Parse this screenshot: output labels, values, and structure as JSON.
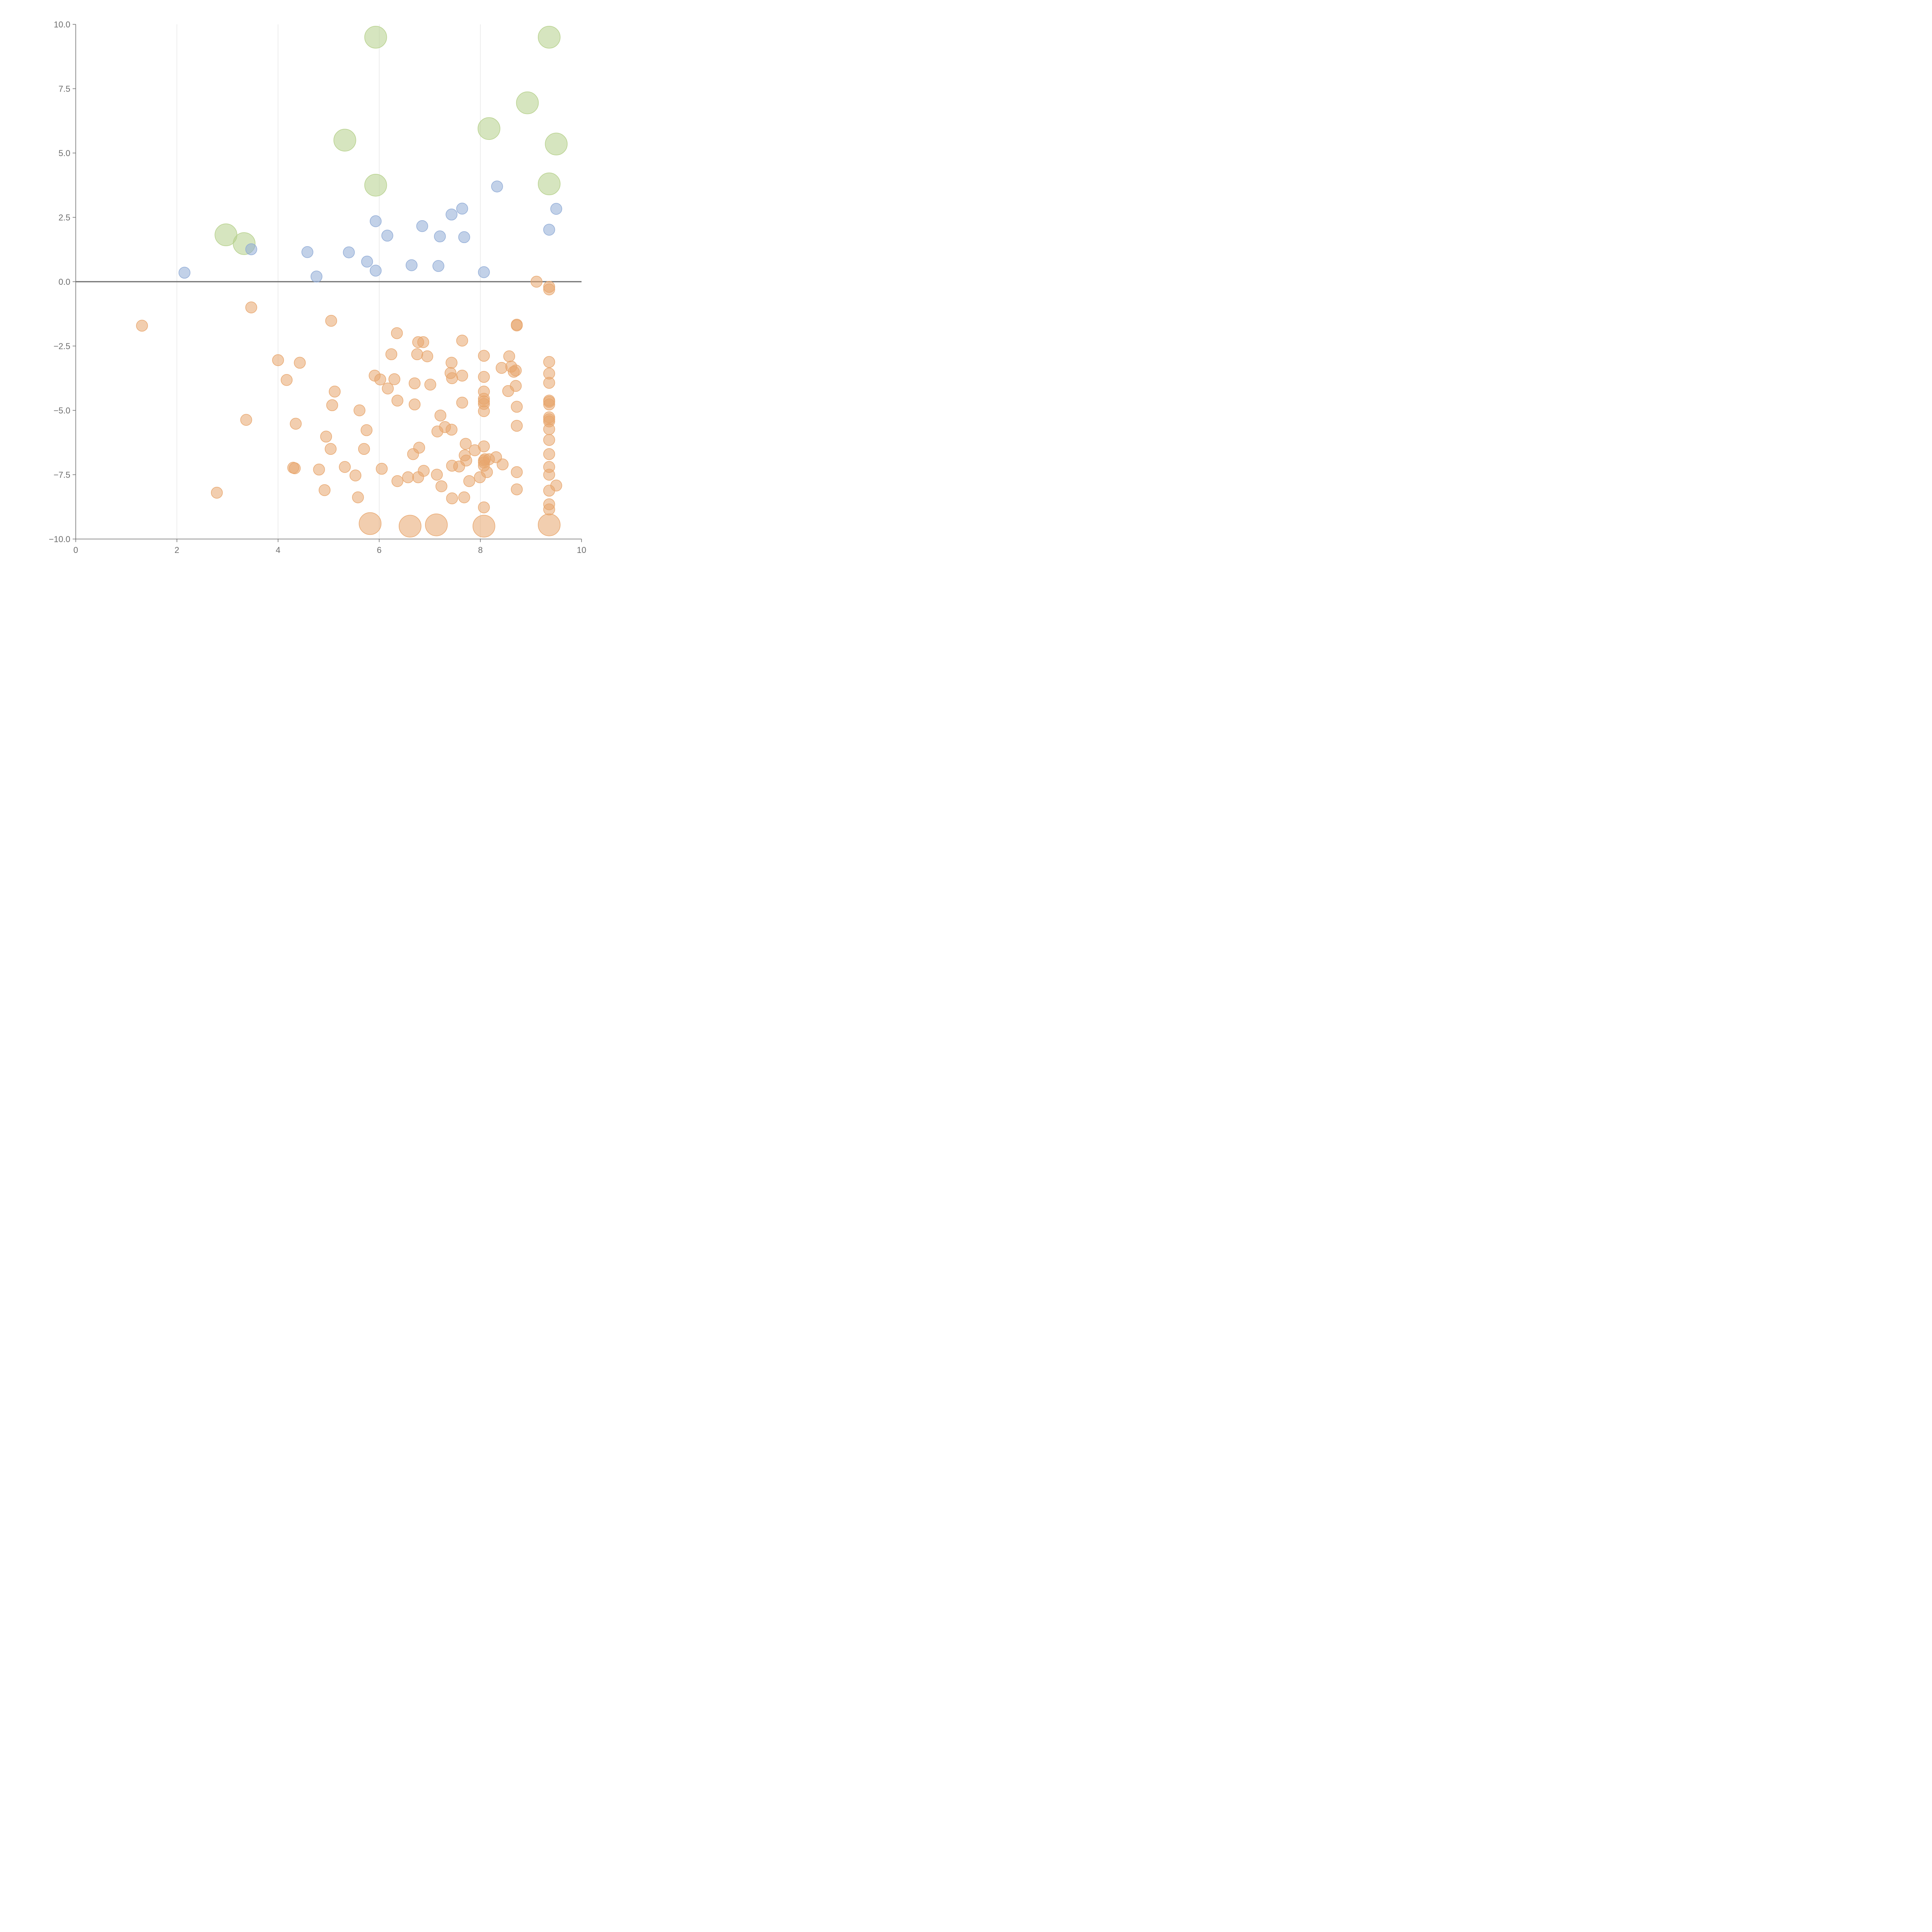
{
  "chart_data": {
    "type": "scatter",
    "title": "",
    "xlabel": "",
    "ylabel": "",
    "xlim": [
      0,
      10
    ],
    "ylim": [
      -10,
      10
    ],
    "x_ticks": [
      "0",
      "2",
      "4",
      "6",
      "8",
      "10"
    ],
    "y_ticks": [
      "10.0",
      "7.5",
      "5.0",
      "2.5",
      "0.0",
      "−2.5",
      "−5.0",
      "−7.5",
      "−10.0"
    ],
    "grid": "vertical",
    "zero_line": 0,
    "colors": {
      "green": "#b5d08a",
      "blue": "#8fabd6",
      "orange": "#e8a66e"
    },
    "series": [
      {
        "color": "#b5d08a",
        "size": "large",
        "points": [
          [
            5.93,
            9.5
          ],
          [
            9.36,
            9.5
          ],
          [
            8.93,
            6.95
          ],
          [
            8.17,
            5.95
          ],
          [
            9.5,
            5.35
          ],
          [
            5.32,
            5.5
          ],
          [
            5.93,
            3.75
          ],
          [
            9.36,
            3.8
          ],
          [
            2.97,
            1.82
          ],
          [
            3.33,
            1.48
          ]
        ]
      },
      {
        "color": "#8fabd6",
        "size": "small",
        "points": [
          [
            2.15,
            0.35
          ],
          [
            3.47,
            1.26
          ],
          [
            4.58,
            1.15
          ],
          [
            4.76,
            0.2
          ],
          [
            5.4,
            1.14
          ],
          [
            5.76,
            0.78
          ],
          [
            5.93,
            0.43
          ],
          [
            5.93,
            2.35
          ],
          [
            6.16,
            1.79
          ],
          [
            6.64,
            0.64
          ],
          [
            6.85,
            2.16
          ],
          [
            7.17,
            0.61
          ],
          [
            7.2,
            1.76
          ],
          [
            7.43,
            2.61
          ],
          [
            7.64,
            2.84
          ],
          [
            7.68,
            1.73
          ],
          [
            8.07,
            0.37
          ],
          [
            8.33,
            3.7
          ],
          [
            9.36,
            2.02
          ],
          [
            9.5,
            2.83
          ]
        ]
      },
      {
        "color": "#e8a66e",
        "size": "small",
        "points": [
          [
            1.31,
            -1.71
          ],
          [
            2.79,
            -8.2
          ],
          [
            3.37,
            -5.37
          ],
          [
            3.47,
            -1.0
          ],
          [
            4.0,
            -3.05
          ],
          [
            4.17,
            -3.82
          ],
          [
            4.3,
            -7.23
          ],
          [
            4.33,
            -7.25
          ],
          [
            4.35,
            -5.52
          ],
          [
            4.43,
            -3.15
          ],
          [
            4.81,
            -7.3
          ],
          [
            4.92,
            -8.1
          ],
          [
            4.95,
            -6.02
          ],
          [
            5.04,
            -6.5
          ],
          [
            5.05,
            -1.52
          ],
          [
            5.07,
            -4.8
          ],
          [
            5.12,
            -4.27
          ],
          [
            5.32,
            -7.2
          ],
          [
            5.53,
            -7.53
          ],
          [
            5.58,
            -8.38
          ],
          [
            5.61,
            -5.0
          ],
          [
            5.7,
            -6.5
          ],
          [
            5.75,
            -5.77
          ],
          [
            5.91,
            -3.65
          ],
          [
            6.02,
            -3.8
          ],
          [
            6.05,
            -7.27
          ],
          [
            6.17,
            -4.15
          ],
          [
            6.24,
            -2.82
          ],
          [
            6.3,
            -3.79
          ],
          [
            6.35,
            -2.0
          ],
          [
            6.36,
            -7.75
          ],
          [
            6.36,
            -4.62
          ],
          [
            6.57,
            -7.6
          ],
          [
            6.67,
            -6.7
          ],
          [
            6.7,
            -3.95
          ],
          [
            6.7,
            -4.77
          ],
          [
            6.75,
            -2.82
          ],
          [
            6.77,
            -2.35
          ],
          [
            6.77,
            -7.6
          ],
          [
            6.79,
            -6.45
          ],
          [
            6.87,
            -2.35
          ],
          [
            6.88,
            -7.35
          ],
          [
            6.95,
            -2.9
          ],
          [
            7.01,
            -4.0
          ],
          [
            7.14,
            -7.5
          ],
          [
            7.15,
            -5.82
          ],
          [
            7.21,
            -5.2
          ],
          [
            7.23,
            -7.95
          ],
          [
            7.3,
            -5.65
          ],
          [
            7.41,
            -3.55
          ],
          [
            7.43,
            -3.15
          ],
          [
            7.43,
            -5.75
          ],
          [
            7.44,
            -7.15
          ],
          [
            7.44,
            -3.75
          ],
          [
            7.44,
            -8.42
          ],
          [
            7.58,
            -7.18
          ],
          [
            7.64,
            -2.29
          ],
          [
            7.64,
            -4.7
          ],
          [
            7.64,
            -3.65
          ],
          [
            7.68,
            -8.38
          ],
          [
            7.69,
            -6.75
          ],
          [
            7.71,
            -6.3
          ],
          [
            7.72,
            -6.95
          ],
          [
            7.78,
            -7.75
          ],
          [
            7.89,
            -6.55
          ],
          [
            7.99,
            -7.6
          ],
          [
            8.07,
            -2.88
          ],
          [
            8.07,
            -3.7
          ],
          [
            8.07,
            -4.27
          ],
          [
            8.07,
            -4.55
          ],
          [
            8.07,
            -4.65
          ],
          [
            8.07,
            -4.75
          ],
          [
            8.07,
            -5.03
          ],
          [
            8.07,
            -6.4
          ],
          [
            8.07,
            -6.95
          ],
          [
            8.07,
            -7.02
          ],
          [
            8.07,
            -7.15
          ],
          [
            8.07,
            -8.77
          ],
          [
            8.09,
            -6.9
          ],
          [
            8.13,
            -7.4
          ],
          [
            8.17,
            -6.9
          ],
          [
            8.31,
            -6.82
          ],
          [
            8.42,
            -3.35
          ],
          [
            8.44,
            -7.1
          ],
          [
            8.55,
            -4.25
          ],
          [
            8.57,
            -2.9
          ],
          [
            8.61,
            -3.3
          ],
          [
            8.66,
            -3.5
          ],
          [
            8.7,
            -3.45
          ],
          [
            8.7,
            -4.05
          ],
          [
            8.72,
            -1.7
          ],
          [
            8.72,
            -1.67
          ],
          [
            8.72,
            -4.86
          ],
          [
            8.72,
            -5.6
          ],
          [
            8.72,
            -7.4
          ],
          [
            8.72,
            -8.07
          ],
          [
            9.11,
            0.0
          ],
          [
            9.36,
            -0.2
          ],
          [
            9.36,
            -0.3
          ],
          [
            9.36,
            -3.12
          ],
          [
            9.36,
            -3.57
          ],
          [
            9.36,
            -3.93
          ],
          [
            9.36,
            -4.62
          ],
          [
            9.36,
            -4.67
          ],
          [
            9.36,
            -4.77
          ],
          [
            9.36,
            -5.27
          ],
          [
            9.36,
            -5.35
          ],
          [
            9.36,
            -5.43
          ],
          [
            9.36,
            -5.73
          ],
          [
            9.36,
            -6.15
          ],
          [
            9.36,
            -6.7
          ],
          [
            9.36,
            -7.2
          ],
          [
            9.36,
            -7.5
          ],
          [
            9.36,
            -8.12
          ],
          [
            9.36,
            -8.65
          ],
          [
            9.36,
            -8.85
          ],
          [
            9.5,
            -7.92
          ]
        ]
      },
      {
        "color": "#e8a66e",
        "size": "large",
        "points": [
          [
            5.82,
            -9.4
          ],
          [
            6.61,
            -9.5
          ],
          [
            7.13,
            -9.45
          ],
          [
            8.07,
            -9.5
          ],
          [
            9.36,
            -9.45
          ]
        ]
      }
    ]
  }
}
